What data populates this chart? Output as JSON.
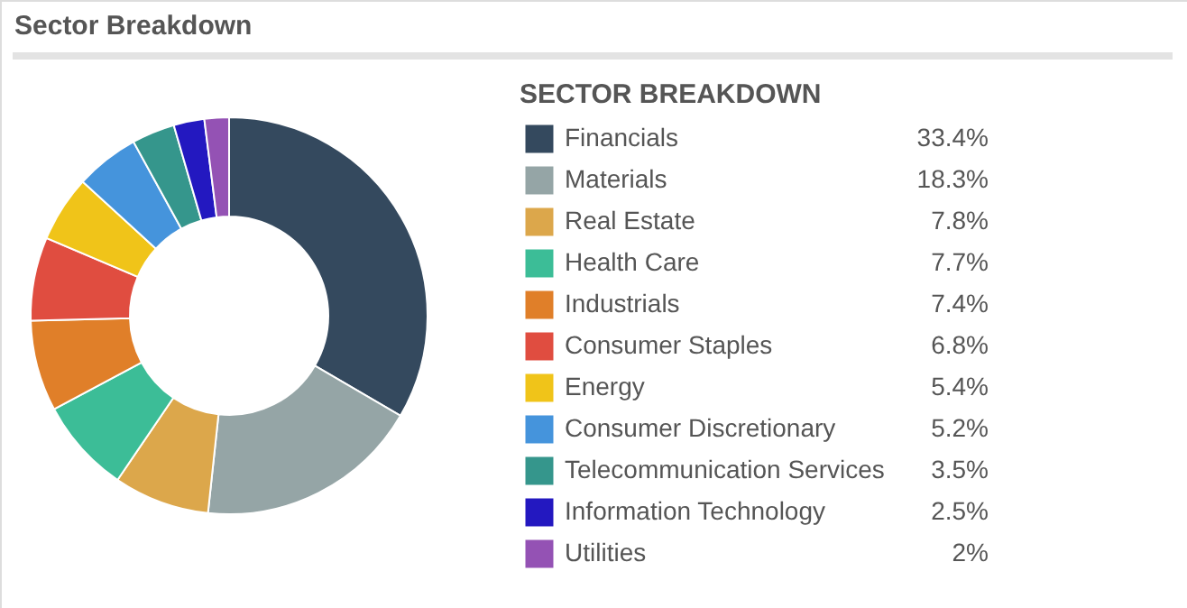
{
  "chart_data": {
    "type": "donut",
    "title": "Sector Breakdown",
    "legend_title": "SECTOR BREAKDOWN",
    "categories": [
      "Financials",
      "Materials",
      "Real Estate",
      "Health Care",
      "Industrials",
      "Consumer Staples",
      "Energy",
      "Consumer Discretionary",
      "Telecommunication Services",
      "Information Technology",
      "Utilities"
    ],
    "values": [
      33.4,
      18.3,
      7.8,
      7.7,
      7.4,
      6.8,
      5.4,
      5.2,
      3.5,
      2.5,
      2
    ],
    "value_labels": [
      "33.4%",
      "18.3%",
      "7.8%",
      "7.7%",
      "7.4%",
      "6.8%",
      "5.4%",
      "5.2%",
      "3.5%",
      "2.5%",
      "2%"
    ],
    "colors": [
      "#34495e",
      "#95a5a6",
      "#dca74b",
      "#3cbd97",
      "#e07f29",
      "#e04d40",
      "#f0c419",
      "#4594dc",
      "#35968c",
      "#2318c0",
      "#9452b4"
    ],
    "legend": "right"
  }
}
